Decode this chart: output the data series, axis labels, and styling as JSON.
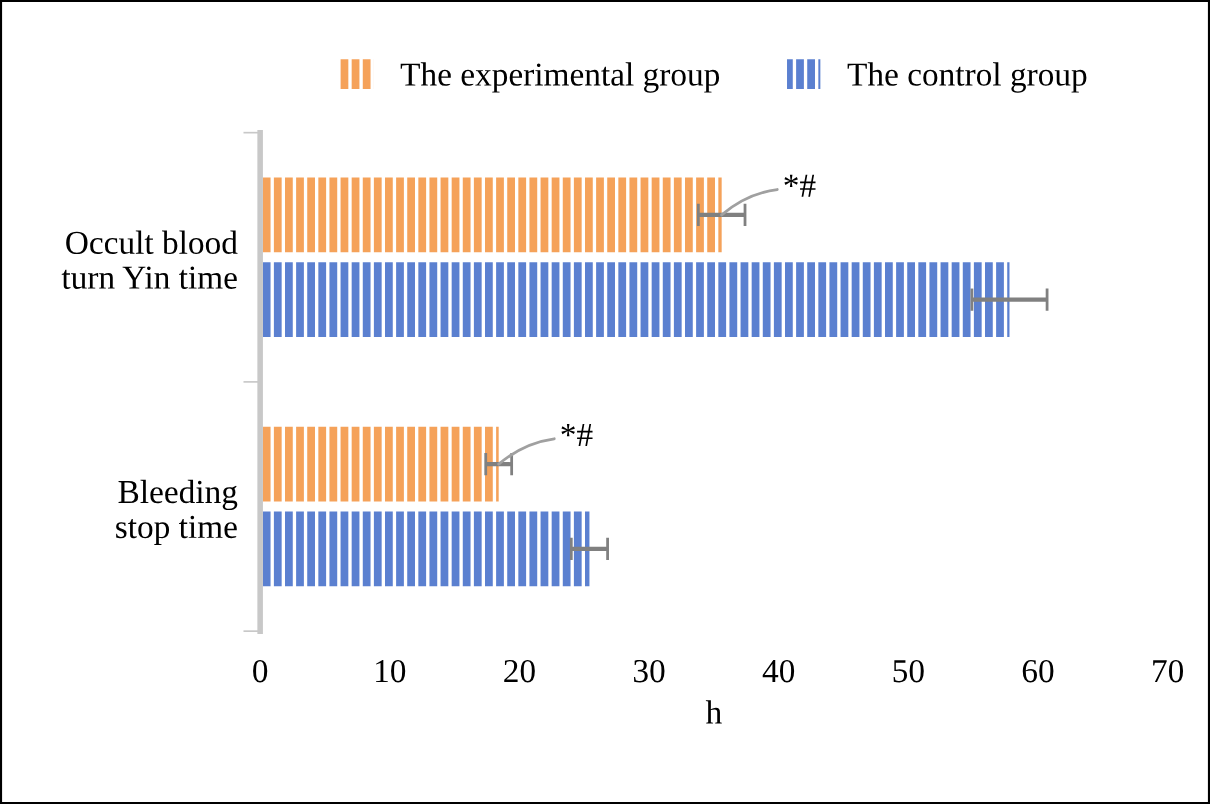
{
  "chart_data": {
    "type": "bar",
    "orientation": "horizontal",
    "xlabel": "h",
    "categories": [
      "Occult blood\nturn Yin time",
      "Bleeding\nstop time"
    ],
    "series": [
      {
        "name": "The experimental group",
        "color": "#f5a25a",
        "values": [
          35.6,
          18.4
        ],
        "errors": [
          1.8,
          1.0
        ]
      },
      {
        "name": "The control group",
        "color": "#5b80d0",
        "values": [
          57.8,
          25.4
        ],
        "errors": [
          2.9,
          1.4
        ]
      }
    ],
    "xlim": [
      0,
      70
    ],
    "xticks": [
      0,
      10,
      20,
      30,
      40,
      50,
      60,
      70
    ],
    "grid": false,
    "legend": "top",
    "annotations": [
      {
        "text": "*#",
        "x": 35.6,
        "y": "Occult blood\nturn Yin time"
      },
      {
        "text": "*#",
        "x": 18.4,
        "y": "Bleeding\nstop time"
      }
    ]
  }
}
